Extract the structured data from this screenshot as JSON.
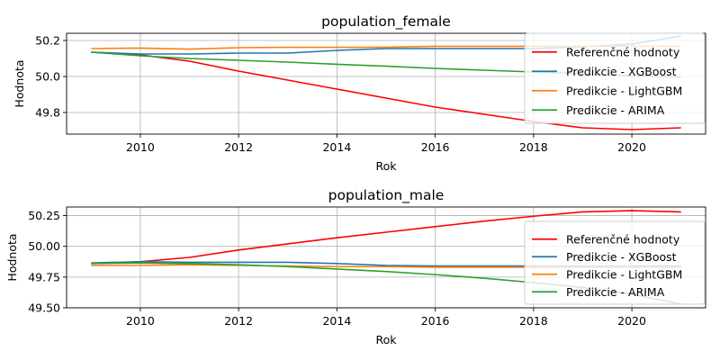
{
  "chart_data": [
    {
      "type": "line",
      "title": "population_female",
      "xlabel": "Rok",
      "ylabel": "Hodnota",
      "xlim": [
        2008.5,
        2021.5
      ],
      "ylim": [
        49.68,
        50.24
      ],
      "xticks": [
        2010,
        2012,
        2014,
        2016,
        2018,
        2020
      ],
      "yticks": [
        49.8,
        50.0,
        50.2
      ],
      "ytick_labels": [
        "49.8",
        "50.0",
        "50.2"
      ],
      "grid": true,
      "legend_position": "top-right",
      "x": [
        2009,
        2010,
        2011,
        2012,
        2013,
        2014,
        2015,
        2016,
        2017,
        2018,
        2019,
        2020,
        2021
      ],
      "series": [
        {
          "name": "Referenčné hodnoty",
          "color": "#ff0000",
          "values": [
            50.135,
            50.12,
            50.085,
            50.03,
            49.98,
            49.93,
            49.88,
            49.83,
            49.79,
            49.75,
            49.715,
            49.705,
            49.715
          ]
        },
        {
          "name": "Predikcie - XGBoost",
          "color": "#1f77b4",
          "values": [
            50.135,
            50.125,
            50.125,
            50.13,
            50.13,
            50.145,
            50.155,
            50.155,
            50.155,
            50.155,
            50.165,
            50.18,
            50.225
          ]
        },
        {
          "name": "Predikcie - LightGBM",
          "color": "#ff7f0e",
          "values": [
            50.155,
            50.158,
            50.152,
            50.16,
            50.162,
            50.162,
            50.163,
            50.168,
            50.168,
            50.168,
            50.168,
            50.168,
            50.168
          ]
        },
        {
          "name": "Predikcie - ARIMA",
          "color": "#2ca02c",
          "values": [
            50.135,
            50.115,
            50.1,
            50.09,
            50.08,
            50.068,
            50.057,
            50.045,
            50.035,
            50.025,
            50.015,
            50.005,
            49.995
          ]
        }
      ]
    },
    {
      "type": "line",
      "title": "population_male",
      "xlabel": "Rok",
      "ylabel": "Hodnota",
      "xlim": [
        2008.5,
        2021.5
      ],
      "ylim": [
        49.5,
        50.32
      ],
      "xticks": [
        2010,
        2012,
        2014,
        2016,
        2018,
        2020
      ],
      "yticks": [
        49.5,
        49.75,
        50.0,
        50.25
      ],
      "ytick_labels": [
        "49.50",
        "49.75",
        "50.00",
        "50.25"
      ],
      "grid": true,
      "legend_position": "right",
      "x": [
        2009,
        2010,
        2011,
        2012,
        2013,
        2014,
        2015,
        2016,
        2017,
        2018,
        2019,
        2020,
        2021
      ],
      "series": [
        {
          "name": "Referenčné hodnoty",
          "color": "#ff0000",
          "values": [
            49.86,
            49.875,
            49.91,
            49.97,
            50.02,
            50.07,
            50.115,
            50.16,
            50.205,
            50.245,
            50.28,
            50.29,
            50.28
          ]
        },
        {
          "name": "Predikcie - XGBoost",
          "color": "#1f77b4",
          "values": [
            49.865,
            49.875,
            49.87,
            49.87,
            49.87,
            49.86,
            49.845,
            49.84,
            49.84,
            49.84,
            49.84,
            49.84,
            49.84
          ]
        },
        {
          "name": "Predikcie - LightGBM",
          "color": "#ff7f0e",
          "values": [
            49.845,
            49.845,
            49.85,
            49.845,
            49.84,
            49.835,
            49.835,
            49.83,
            49.83,
            49.83,
            49.83,
            49.83,
            49.83
          ]
        },
        {
          "name": "Predikcie - ARIMA",
          "color": "#2ca02c",
          "values": [
            49.86,
            49.865,
            49.86,
            49.85,
            49.835,
            49.815,
            49.795,
            49.77,
            49.74,
            49.705,
            49.665,
            49.61,
            49.53
          ]
        }
      ]
    }
  ]
}
